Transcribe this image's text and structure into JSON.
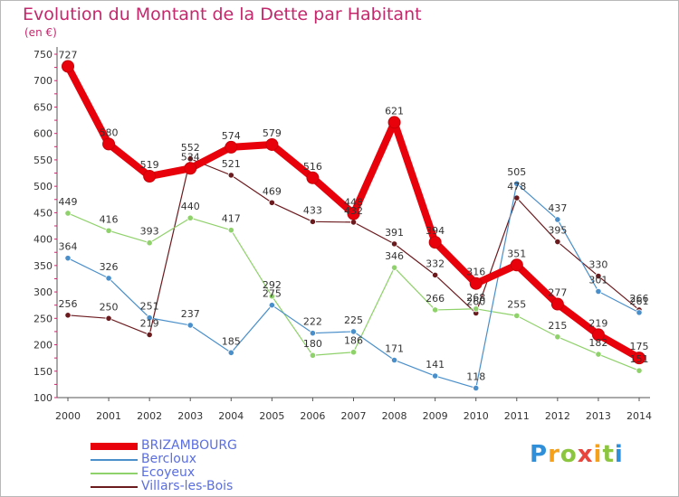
{
  "title": "Evolution du Montant de la Dette par Habitant",
  "subtitle": "(en €)",
  "brand": {
    "logo_text": "Proxiti"
  },
  "chart_data": {
    "type": "line",
    "x": [
      2000,
      2001,
      2002,
      2003,
      2004,
      2005,
      2006,
      2007,
      2008,
      2009,
      2010,
      2011,
      2012,
      2013,
      2014
    ],
    "ylim": [
      100,
      750
    ],
    "yticks": [
      100,
      150,
      200,
      250,
      300,
      350,
      400,
      450,
      500,
      550,
      600,
      650,
      700,
      750
    ],
    "grid": false,
    "legend_position": "bottom-left",
    "series": [
      {
        "name": "BRIZAMBOURG",
        "color": "#e8000b",
        "values": [
          727,
          580,
          519,
          534,
          574,
          579,
          516,
          448,
          621,
          394,
          316,
          351,
          277,
          219,
          175
        ]
      },
      {
        "name": "Bercloux",
        "color": "#4a8fca",
        "values": [
          364,
          326,
          251,
          237,
          185,
          275,
          222,
          225,
          171,
          141,
          118,
          505,
          437,
          301,
          261
        ]
      },
      {
        "name": "Ecoyeux",
        "color": "#8fd16a",
        "values": [
          449,
          416,
          393,
          440,
          417,
          292,
          180,
          186,
          346,
          266,
          268,
          255,
          215,
          182,
          151
        ]
      },
      {
        "name": "Villars-les-Bois",
        "color": "#6b1a1e",
        "values": [
          256,
          250,
          219,
          552,
          521,
          469,
          433,
          432,
          391,
          332,
          260,
          478,
          395,
          330,
          266
        ]
      }
    ]
  }
}
